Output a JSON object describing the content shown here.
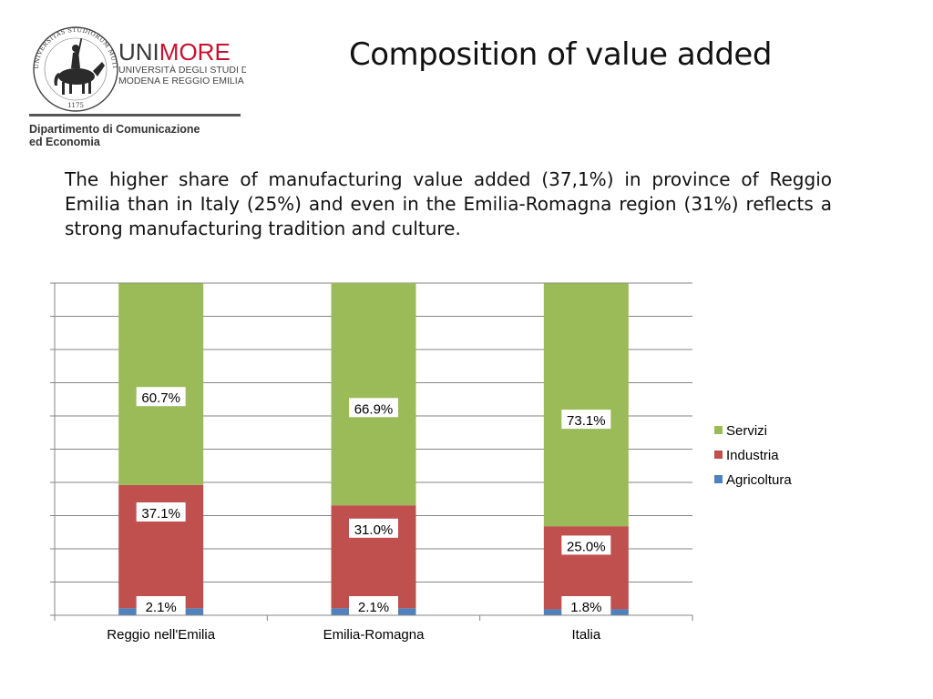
{
  "header": {
    "logo": {
      "brand_uni": "UNI",
      "brand_more": "MORE",
      "line1": "UNIVERSITÀ DEGLI STUDI DI",
      "line2": "MODENA E REGGIO EMILIA",
      "seal_text": "UNIVERSITAS STUDIORUM MUTINENSIS ET REGIENSIS",
      "seal_year": "1175"
    },
    "department_line1": "Dipartimento di Comunicazione",
    "department_line2": "ed Economia"
  },
  "slide": {
    "title": "Composition of value added",
    "body": "The higher share of manufacturing value added (37,1%) in province of Reggio Emilia than in Italy (25%) and even in the Emilia-Romagna region (31%) reflects a strong manufacturing tradition and culture."
  },
  "colors": {
    "agricoltura": "#4f81bd",
    "industria": "#c0504d",
    "servizi": "#9bbb59",
    "brand_red": "#c8102e",
    "gridline": "#868686"
  },
  "chart_data": {
    "type": "bar",
    "stacked": true,
    "categories": [
      "Reggio nell'Emilia",
      "Emilia-Romagna",
      "Italia"
    ],
    "series": [
      {
        "name": "Agricoltura",
        "values": [
          2.1,
          2.1,
          1.8
        ],
        "labels": [
          "2.1%",
          "2.1%",
          "1.8%"
        ]
      },
      {
        "name": "Industria",
        "values": [
          37.1,
          31.0,
          25.0
        ],
        "labels": [
          "37.1%",
          "31.0%",
          "25.0%"
        ]
      },
      {
        "name": "Servizi",
        "values": [
          60.7,
          66.9,
          73.1
        ],
        "labels": [
          "60.7%",
          "66.9%",
          "73.1%"
        ]
      }
    ],
    "legend_order": [
      "Servizi",
      "Industria",
      "Agricoltura"
    ],
    "legend_position": "right",
    "ylim": [
      0,
      100
    ],
    "y_tick_labels_visible": false,
    "grid": true
  }
}
